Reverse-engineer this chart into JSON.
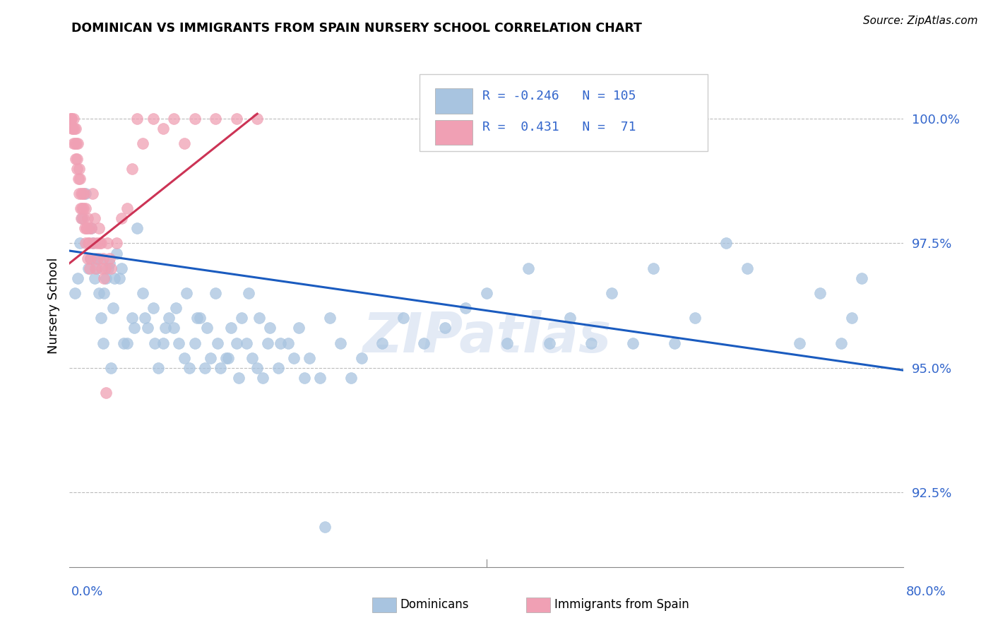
{
  "title": "DOMINICAN VS IMMIGRANTS FROM SPAIN NURSERY SCHOOL CORRELATION CHART",
  "source": "Source: ZipAtlas.com",
  "ylabel": "Nursery School",
  "xlim": [
    0.0,
    80.0
  ],
  "ylim": [
    91.0,
    101.5
  ],
  "yticks": [
    92.5,
    95.0,
    97.5,
    100.0
  ],
  "ytick_labels": [
    "92.5%",
    "95.0%",
    "97.5%",
    "100.0%"
  ],
  "blue_R": -0.246,
  "blue_N": 105,
  "pink_R": 0.431,
  "pink_N": 71,
  "legend_label_blue": "Dominicans",
  "legend_label_pink": "Immigrants from Spain",
  "blue_color": "#a8c4e0",
  "pink_color": "#f0a0b4",
  "blue_line_color": "#1a5bbf",
  "pink_line_color": "#cc3355",
  "watermark": "ZIPatlas",
  "blue_scatter_x": [
    2.1,
    2.5,
    2.8,
    3.0,
    3.2,
    3.5,
    3.8,
    4.0,
    4.2,
    4.5,
    4.8,
    5.0,
    5.5,
    6.0,
    6.5,
    7.0,
    7.5,
    8.0,
    8.5,
    9.0,
    9.5,
    10.0,
    10.5,
    11.0,
    11.5,
    12.0,
    12.5,
    13.0,
    13.5,
    14.0,
    14.5,
    15.0,
    15.5,
    16.0,
    16.5,
    17.0,
    17.5,
    18.0,
    18.5,
    19.0,
    20.0,
    21.0,
    22.0,
    23.0,
    24.0,
    25.0,
    26.0,
    27.0,
    28.0,
    30.0,
    32.0,
    34.0,
    36.0,
    38.0,
    40.0,
    42.0,
    44.0,
    46.0,
    48.0,
    50.0,
    52.0,
    54.0,
    56.0,
    58.0,
    60.0,
    63.0,
    65.0,
    70.0,
    72.0,
    74.0,
    75.0,
    76.0,
    0.5,
    0.8,
    1.0,
    1.2,
    1.5,
    1.8,
    2.0,
    2.2,
    2.4,
    2.6,
    2.9,
    3.3,
    3.7,
    4.3,
    5.2,
    6.2,
    7.2,
    8.2,
    9.2,
    10.2,
    11.2,
    12.2,
    13.2,
    14.2,
    15.2,
    16.2,
    17.2,
    18.2,
    19.2,
    20.2,
    21.5,
    22.5,
    24.5
  ],
  "blue_scatter_y": [
    97.8,
    97.2,
    96.5,
    96.0,
    95.5,
    96.8,
    97.1,
    95.0,
    96.2,
    97.3,
    96.8,
    97.0,
    95.5,
    96.0,
    97.8,
    96.5,
    95.8,
    96.2,
    95.0,
    95.5,
    96.0,
    95.8,
    95.5,
    95.2,
    95.0,
    95.5,
    96.0,
    95.0,
    95.2,
    96.5,
    95.0,
    95.2,
    95.8,
    95.5,
    96.0,
    95.5,
    95.2,
    95.0,
    94.8,
    95.5,
    95.0,
    95.5,
    95.8,
    95.2,
    94.8,
    96.0,
    95.5,
    94.8,
    95.2,
    95.5,
    96.0,
    95.5,
    95.8,
    96.2,
    96.5,
    95.5,
    97.0,
    95.5,
    96.0,
    95.5,
    96.5,
    95.5,
    97.0,
    95.5,
    96.0,
    97.5,
    97.0,
    95.5,
    96.5,
    95.5,
    96.0,
    96.8,
    96.5,
    96.8,
    97.5,
    98.0,
    98.5,
    97.0,
    97.2,
    97.5,
    96.8,
    97.0,
    97.2,
    96.5,
    97.0,
    96.8,
    95.5,
    95.8,
    96.0,
    95.5,
    95.8,
    96.2,
    96.5,
    96.0,
    95.8,
    95.5,
    95.2,
    94.8,
    96.5,
    96.0,
    95.8,
    95.5,
    95.2,
    94.8,
    91.8
  ],
  "pink_scatter_x": [
    0.1,
    0.2,
    0.3,
    0.4,
    0.5,
    0.6,
    0.7,
    0.8,
    0.9,
    1.0,
    1.1,
    1.2,
    1.3,
    1.4,
    1.5,
    1.6,
    1.7,
    1.8,
    1.9,
    2.0,
    2.2,
    2.4,
    2.6,
    2.8,
    3.0,
    3.2,
    3.4,
    3.6,
    3.8,
    4.0,
    4.5,
    5.0,
    5.5,
    6.0,
    6.5,
    7.0,
    8.0,
    9.0,
    10.0,
    11.0,
    12.0,
    14.0,
    16.0,
    18.0,
    0.15,
    0.25,
    0.35,
    0.45,
    0.55,
    0.65,
    0.75,
    0.85,
    0.95,
    1.05,
    1.15,
    1.25,
    1.35,
    1.45,
    1.55,
    1.65,
    1.75,
    1.85,
    1.95,
    2.1,
    2.3,
    2.5,
    2.7,
    2.9,
    3.1,
    3.3,
    3.5
  ],
  "pink_scatter_y": [
    100.0,
    100.0,
    99.8,
    100.0,
    99.5,
    99.8,
    99.2,
    99.5,
    99.0,
    98.8,
    98.5,
    98.2,
    98.0,
    98.5,
    98.2,
    97.8,
    98.0,
    97.5,
    97.8,
    97.2,
    98.5,
    98.0,
    97.5,
    97.8,
    97.5,
    97.2,
    97.0,
    97.5,
    97.2,
    97.0,
    97.5,
    98.0,
    98.2,
    99.0,
    100.0,
    99.5,
    100.0,
    99.8,
    100.0,
    99.5,
    100.0,
    100.0,
    100.0,
    100.0,
    100.0,
    99.8,
    99.5,
    99.8,
    99.2,
    99.5,
    99.0,
    98.8,
    98.5,
    98.2,
    98.0,
    98.5,
    98.2,
    97.8,
    97.5,
    97.8,
    97.2,
    97.5,
    97.0,
    97.8,
    97.5,
    97.0,
    97.2,
    97.5,
    97.0,
    96.8,
    94.5
  ],
  "blue_trend_x": [
    0.0,
    80.0
  ],
  "blue_trend_y": [
    97.35,
    94.95
  ],
  "pink_trend_x": [
    0.0,
    18.0
  ],
  "pink_trend_y": [
    97.1,
    100.1
  ]
}
